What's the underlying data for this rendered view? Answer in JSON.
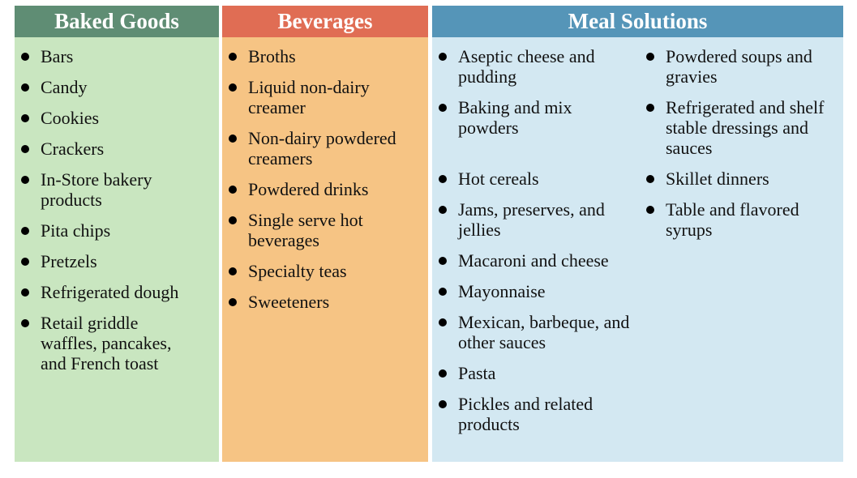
{
  "columns": [
    {
      "title": "Baked Goods",
      "color": "#5f8d74",
      "items": [
        "Bars",
        "Candy",
        "Cookies",
        "Crackers",
        "In-Store bakery products",
        "Pita chips",
        "Pretzels",
        "Refrigerated dough",
        "Retail griddle waffles, pancakes, and French toast"
      ]
    },
    {
      "title": "Beverages",
      "color": "#e06d54",
      "items": [
        "Broths",
        "Liquid non-dairy creamer",
        "Non-dairy powdered creamers",
        "Powdered drinks",
        "Single serve hot beverages",
        "Specialty teas",
        "Sweeteners"
      ]
    },
    {
      "title": "Meal Solutions",
      "color": "#5595b8",
      "left_items": [
        "Aseptic cheese and pudding",
        "Baking and mix powders",
        "Hot cereals",
        "Jams, preserves, and jellies",
        "Macaroni and cheese",
        "Mayonnaise",
        "Mexican, barbeque, and other sauces",
        "Pasta",
        "Pickles and related products"
      ],
      "right_items": [
        "Powdered soups and gravies",
        "Refrigerated and shelf stable dressings and sauces",
        "Skillet dinners",
        "Table and flavored syrups"
      ]
    }
  ]
}
